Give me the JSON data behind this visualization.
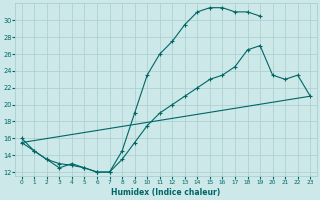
{
  "xlabel": "Humidex (Indice chaleur)",
  "bg_color": "#cce8e8",
  "grid_color": "#aacece",
  "line_color": "#006666",
  "xlim": [
    -0.5,
    23.5
  ],
  "ylim": [
    11.5,
    32
  ],
  "xticks": [
    0,
    1,
    2,
    3,
    4,
    5,
    6,
    7,
    8,
    9,
    10,
    11,
    12,
    13,
    14,
    15,
    16,
    17,
    18,
    19,
    20,
    21,
    22,
    23
  ],
  "yticks": [
    12,
    14,
    16,
    18,
    20,
    22,
    24,
    26,
    28,
    30
  ],
  "curve1_x": [
    0,
    1,
    2,
    3,
    4,
    5,
    6,
    7,
    8,
    9,
    10,
    11,
    12,
    13,
    14,
    15,
    16,
    17,
    18,
    19
  ],
  "curve1_y": [
    16,
    14.5,
    13.5,
    12.5,
    13,
    12.5,
    12,
    12,
    14.5,
    19,
    23.5,
    26,
    27.5,
    29.5,
    31,
    31.5,
    31.5,
    31,
    31,
    30.5
  ],
  "curve2_x": [
    0,
    1,
    2,
    3,
    4,
    5,
    6,
    7,
    8,
    9,
    10,
    11,
    12,
    13,
    14,
    15,
    16,
    17,
    18,
    19,
    20,
    21,
    22,
    23
  ],
  "curve2_y": [
    15.5,
    14.5,
    13.5,
    13,
    12.8,
    12.5,
    12.0,
    12.0,
    13.5,
    15.5,
    17.5,
    19,
    20,
    21,
    22,
    23,
    23.5,
    24.5,
    26.5,
    27,
    23.5,
    23,
    23.5,
    21
  ],
  "curve3_x": [
    0,
    23
  ],
  "curve3_y": [
    15.5,
    21
  ]
}
